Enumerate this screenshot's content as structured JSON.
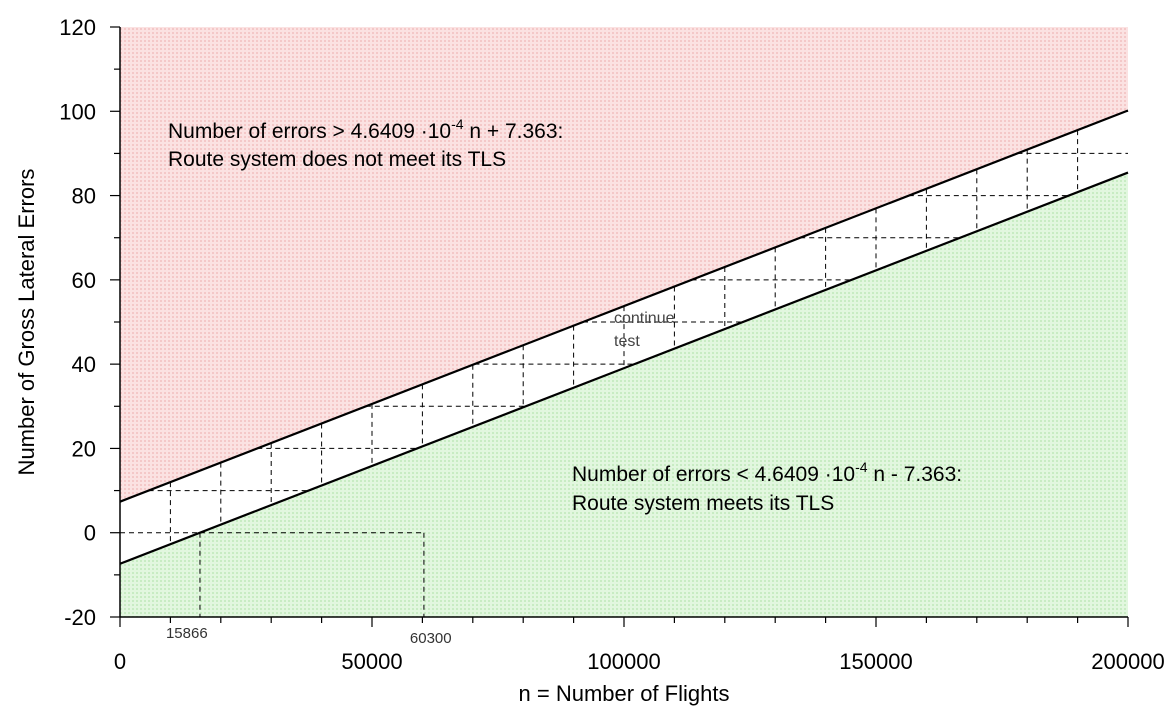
{
  "chart_data": {
    "type": "line",
    "title": "",
    "xlabel": "n = Number of Flights",
    "ylabel": "Number of Gross Lateral Errors",
    "xlim": [
      0,
      200000
    ],
    "ylim": [
      -20,
      120
    ],
    "x_ticks": [
      0,
      50000,
      100000,
      150000,
      200000
    ],
    "x_tick_labels": [
      "0",
      "50000",
      "100000",
      "150000",
      "200000"
    ],
    "y_ticks": [
      -20,
      0,
      20,
      40,
      60,
      80,
      100,
      120
    ],
    "y_tick_labels": [
      "-20",
      "0",
      "20",
      "40",
      "60",
      "80",
      "100",
      "120"
    ],
    "grid": false,
    "series": [
      {
        "slope": 0.00046409,
        "intercept": 7.363,
        "x": [
          0,
          200000
        ],
        "y": [
          7.363,
          100.181
        ]
      },
      {
        "slope": 0.00046409,
        "intercept": -7.363,
        "x": [
          0,
          200000
        ],
        "y": [
          -7.363,
          85.455
        ]
      }
    ],
    "regions": {
      "reject_color": "#f7d0d0",
      "accept_color": "#d4f2d0"
    },
    "annotations": {
      "upper_line1_prefix": "Number of errors > 4.6409 ·10",
      "upper_line1_exp": "-4",
      "upper_line1_suffix": " n + 7.363:",
      "upper_line2": "Route system does not meet its TLS",
      "lower_line1_prefix": "Number of errors < 4.6409 ·10",
      "lower_line1_exp": "-4",
      "lower_line1_suffix": " n - 7.363:",
      "lower_line2": "Route system meets its TLS",
      "continue_line1": "continue",
      "continue_line2": "test"
    },
    "markers": [
      {
        "x": 15866,
        "label": "15866"
      },
      {
        "x": 60300,
        "label": "60300"
      }
    ],
    "grid_x_step": 10000,
    "grid_y_step": 10
  }
}
